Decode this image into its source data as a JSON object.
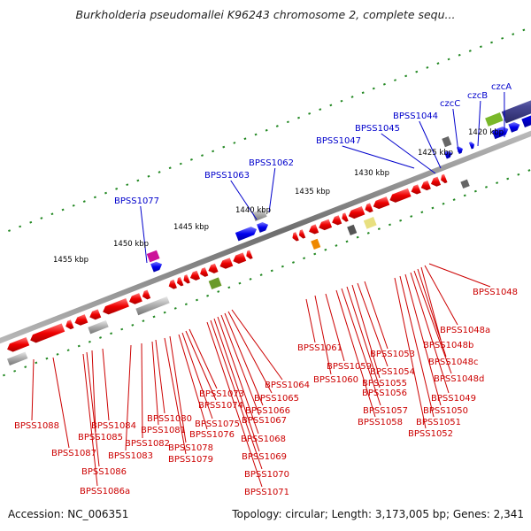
{
  "title": "Burkholderia pseudomallei K96243 chromosome 2, complete sequ...",
  "footer": {
    "accession": "Accession: NC_006351",
    "topology": "Topology: circular; Length: 3,173,005 bp; Genes: 2,341"
  },
  "scale_labels": [
    "1420 kbp",
    "1425 kbp",
    "1430 kbp",
    "1435 kbp",
    "1440 kbp",
    "1445 kbp",
    "1450 kbp",
    "1455 kbp"
  ],
  "top_genes": [
    "czcA",
    "czcB",
    "czcC",
    "BPSS1044",
    "BPSS1045",
    "BPSS1047",
    "BPSS1062",
    "BPSS1063",
    "BPSS1077"
  ],
  "bottom_genes": [
    "BPSS1048",
    "BPSS1048a",
    "BPSS1048b",
    "BPSS1048c",
    "BPSS1048d",
    "BPSS1049",
    "BPSS1050",
    "BPSS1051",
    "BPSS1052",
    "BPSS1053",
    "BPSS1054",
    "BPSS1055",
    "BPSS1056",
    "BPSS1057",
    "BPSS1058",
    "BPSS1059",
    "BPSS1060",
    "BPSS1061",
    "BPSS1064",
    "BPSS1065",
    "BPSS1066",
    "BPSS1067",
    "BPSS1068",
    "BPSS1069",
    "BPSS1070",
    "BPSS1071",
    "BPSS1073",
    "BPSS1074",
    "BPSS1075",
    "BPSS1076",
    "BPSS1078",
    "BPSS1079",
    "BPSS1080",
    "BPSS1081",
    "BPSS1082",
    "BPSS1083",
    "BPSS1084",
    "BPSS1085",
    "BPSS1086",
    "BPSS1086a",
    "BPSS1087",
    "BPSS1088"
  ],
  "colors": {
    "forward_strand_gene": "#0000ee",
    "reverse_strand_gene": "#ee0000",
    "pseudo_gene": "#aaaaaa",
    "backbone": "#888888",
    "tick": "#228822",
    "label_top": "#0000cc",
    "label_bottom": "#cc0000"
  }
}
